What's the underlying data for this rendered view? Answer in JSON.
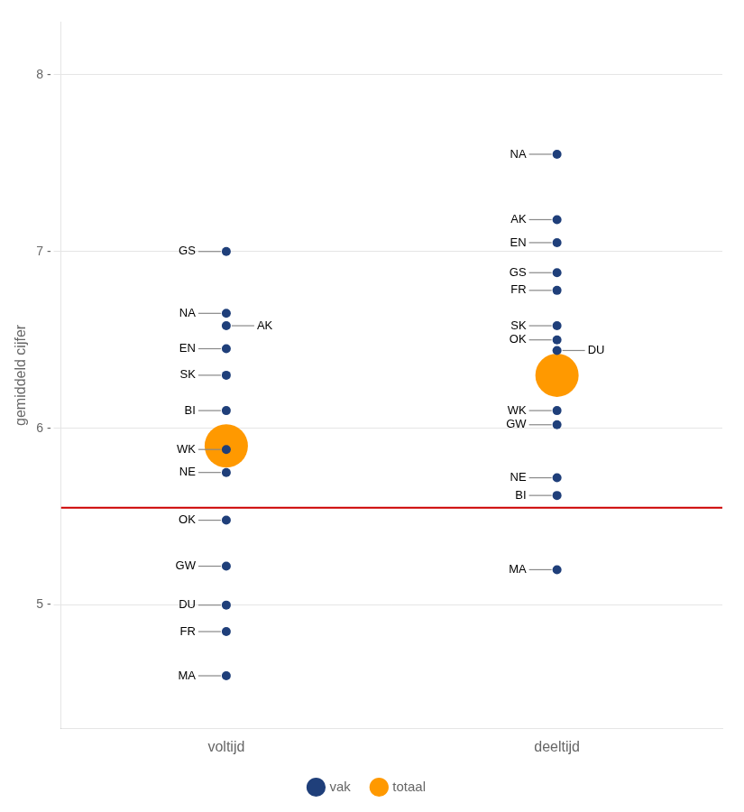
{
  "chart_data": {
    "type": "scatter",
    "categories": [
      "voltijd",
      "deeltijd"
    ],
    "ylabel": "gemiddeld cijfer",
    "ylim": [
      4.3,
      8.3
    ],
    "yticks": [
      {
        "value": 5,
        "label": "5 -"
      },
      {
        "value": 6,
        "label": "6 -"
      },
      {
        "value": 7,
        "label": "7 -"
      },
      {
        "value": 8,
        "label": "8 -"
      }
    ],
    "grid": true,
    "legend": "bottom",
    "series": [
      {
        "name": "totaal",
        "color": "#FF9900",
        "values": [
          5.9,
          6.3
        ]
      },
      {
        "name": "vak",
        "color": "#1F3F7A",
        "points": [
          {
            "category": "voltijd",
            "label": "GS",
            "value": 7.0
          },
          {
            "category": "voltijd",
            "label": "NA",
            "value": 6.65
          },
          {
            "category": "voltijd",
            "label": "AK",
            "value": 6.58
          },
          {
            "category": "voltijd",
            "label": "SK",
            "value": 6.3
          },
          {
            "category": "voltijd",
            "label": "EN",
            "value": 6.45
          },
          {
            "category": "voltijd",
            "label": "BI",
            "value": 6.1
          },
          {
            "category": "voltijd",
            "label": "WK",
            "value": 5.88
          },
          {
            "category": "voltijd",
            "label": "NE",
            "value": 5.75
          },
          {
            "category": "voltijd",
            "label": "OK",
            "value": 5.48
          },
          {
            "category": "voltijd",
            "label": "GW",
            "value": 5.22
          },
          {
            "category": "voltijd",
            "label": "DU",
            "value": 5.0
          },
          {
            "category": "voltijd",
            "label": "FR",
            "value": 4.85
          },
          {
            "category": "voltijd",
            "label": "MA",
            "value": 4.6
          },
          {
            "category": "deeltijd",
            "label": "NA",
            "value": 7.55
          },
          {
            "category": "deeltijd",
            "label": "AK",
            "value": 7.18
          },
          {
            "category": "deeltijd",
            "label": "EN",
            "value": 7.05
          },
          {
            "category": "deeltijd",
            "label": "GS",
            "value": 6.88
          },
          {
            "category": "deeltijd",
            "label": "FR",
            "value": 6.78
          },
          {
            "category": "deeltijd",
            "label": "SK",
            "value": 6.58
          },
          {
            "category": "deeltijd",
            "label": "OK",
            "value": 6.5
          },
          {
            "category": "deeltijd",
            "label": "DU",
            "value": 6.44
          },
          {
            "category": "deeltijd",
            "label": "WK",
            "value": 6.1
          },
          {
            "category": "deeltijd",
            "label": "GW",
            "value": 6.02
          },
          {
            "category": "deeltijd",
            "label": "NE",
            "value": 5.72
          },
          {
            "category": "deeltijd",
            "label": "BI",
            "value": 5.62
          },
          {
            "category": "deeltijd",
            "label": "MA",
            "value": 5.2
          }
        ]
      }
    ],
    "annotations": [
      {
        "type": "hline",
        "y": 5.55,
        "color": "#CC0000"
      }
    ]
  }
}
